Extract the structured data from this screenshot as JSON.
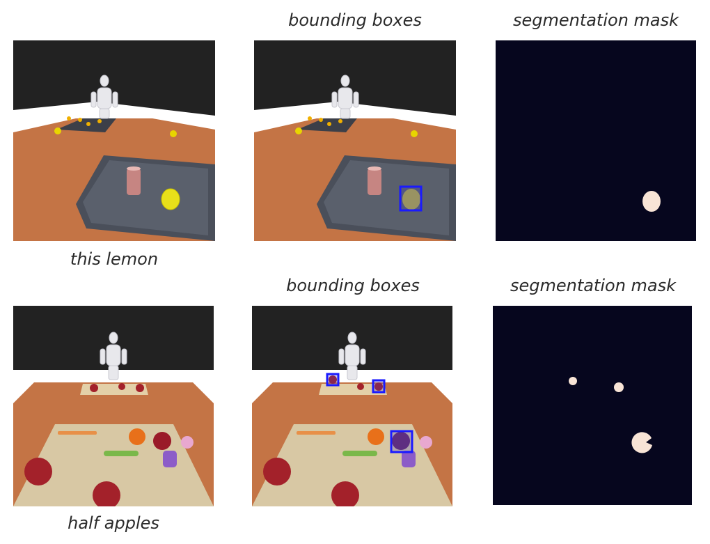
{
  "rows": [
    {
      "caption": "this lemon",
      "titles": {
        "boxes": "bounding boxes",
        "mask": "segmentation mask"
      }
    },
    {
      "caption": "half apples",
      "titles": {
        "boxes": "bounding boxes",
        "mask": "segmentation mask"
      }
    }
  ],
  "colors": {
    "box_outline": "#1a1aff",
    "mask_background": "#06061e",
    "mask_blob": "#f8e4d6",
    "table": "#c47445",
    "wall": "#222222"
  }
}
